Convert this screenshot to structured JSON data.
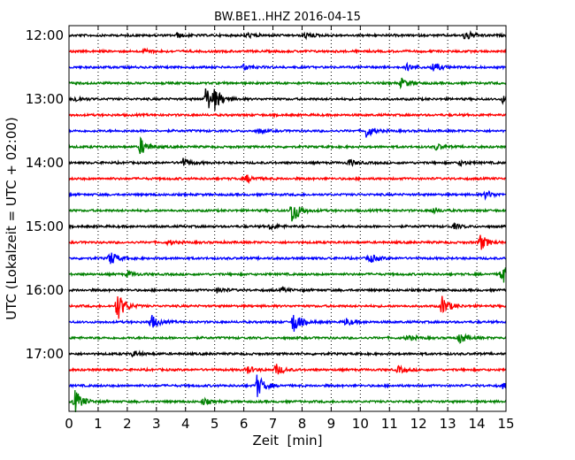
{
  "chart_data": {
    "type": "line",
    "title": "BW.BE1..HHZ 2016-04-15",
    "xlabel": "Zeit  [min]",
    "ylabel": "UTC (Lokalzeit = UTC + 02:00)",
    "xlim": [
      0,
      15
    ],
    "xticks": [
      "0",
      "1",
      "2",
      "3",
      "4",
      "5",
      "6",
      "7",
      "8",
      "9",
      "10",
      "11",
      "12",
      "13",
      "14",
      "15"
    ],
    "yticks": [
      "12:00",
      "13:00",
      "14:00",
      "15:00",
      "16:00",
      "17:00"
    ],
    "grid": "vertical dotted",
    "color_cycle": [
      "#000000",
      "#ff0000",
      "#0000ff",
      "#008000"
    ],
    "traces": [
      {
        "label": "12:00",
        "color": "#000000",
        "events": [
          {
            "t": 13.6,
            "amp": 0.6
          },
          {
            "t": 8.1,
            "amp": 0.3
          },
          {
            "t": 6.1,
            "amp": 0.25
          },
          {
            "t": 3.7,
            "amp": 0.2
          }
        ]
      },
      {
        "label": "12:15",
        "color": "#ff0000",
        "events": [
          {
            "t": 2.6,
            "amp": 0.25
          }
        ]
      },
      {
        "label": "12:30",
        "color": "#0000ff",
        "events": [
          {
            "t": 12.5,
            "amp": 0.5
          },
          {
            "t": 11.6,
            "amp": 0.3
          },
          {
            "t": 6.0,
            "amp": 0.3
          }
        ]
      },
      {
        "label": "12:45",
        "color": "#008000",
        "events": [
          {
            "t": 11.4,
            "amp": 0.5
          }
        ]
      },
      {
        "label": "13:00",
        "color": "#000000",
        "events": [
          {
            "t": 4.7,
            "amp": 1.4
          },
          {
            "t": 5.0,
            "amp": 0.8
          },
          {
            "t": 14.9,
            "amp": 0.4
          },
          {
            "t": 0.2,
            "amp": 0.3
          }
        ]
      },
      {
        "label": "13:15",
        "color": "#ff0000",
        "events": []
      },
      {
        "label": "13:30",
        "color": "#0000ff",
        "events": [
          {
            "t": 10.2,
            "amp": 0.7
          },
          {
            "t": 6.5,
            "amp": 0.2
          }
        ]
      },
      {
        "label": "13:45",
        "color": "#008000",
        "events": [
          {
            "t": 2.45,
            "amp": 0.9
          },
          {
            "t": 12.6,
            "amp": 0.3
          }
        ]
      },
      {
        "label": "14:00",
        "color": "#000000",
        "events": [
          {
            "t": 3.9,
            "amp": 0.5
          },
          {
            "t": 9.6,
            "amp": 0.35
          },
          {
            "t": 13.4,
            "amp": 0.25
          }
        ]
      },
      {
        "label": "14:15",
        "color": "#ff0000",
        "events": [
          {
            "t": 6.1,
            "amp": 0.4
          }
        ]
      },
      {
        "label": "14:30",
        "color": "#0000ff",
        "events": [
          {
            "t": 14.3,
            "amp": 0.4
          }
        ]
      },
      {
        "label": "14:45",
        "color": "#008000",
        "events": [
          {
            "t": 7.65,
            "amp": 1.5
          },
          {
            "t": 12.5,
            "amp": 0.3
          }
        ]
      },
      {
        "label": "15:00",
        "color": "#000000",
        "events": [
          {
            "t": 6.9,
            "amp": 0.3
          },
          {
            "t": 13.2,
            "amp": 0.25
          }
        ]
      },
      {
        "label": "15:15",
        "color": "#ff0000",
        "events": [
          {
            "t": 14.1,
            "amp": 0.9
          },
          {
            "t": 3.4,
            "amp": 0.2
          }
        ]
      },
      {
        "label": "15:30",
        "color": "#0000ff",
        "events": [
          {
            "t": 1.4,
            "amp": 0.8
          },
          {
            "t": 10.3,
            "amp": 0.5
          }
        ]
      },
      {
        "label": "15:45",
        "color": "#008000",
        "events": [
          {
            "t": 14.85,
            "amp": 1.2
          },
          {
            "t": 2.0,
            "amp": 0.3
          }
        ]
      },
      {
        "label": "16:00",
        "color": "#000000",
        "events": [
          {
            "t": 5.1,
            "amp": 0.3
          },
          {
            "t": 7.3,
            "amp": 0.2
          }
        ]
      },
      {
        "label": "16:15",
        "color": "#ff0000",
        "events": [
          {
            "t": 1.65,
            "amp": 1.6
          },
          {
            "t": 12.8,
            "amp": 1.0
          }
        ]
      },
      {
        "label": "16:30",
        "color": "#0000ff",
        "events": [
          {
            "t": 2.8,
            "amp": 0.8
          },
          {
            "t": 7.7,
            "amp": 1.2
          },
          {
            "t": 9.5,
            "amp": 0.4
          }
        ]
      },
      {
        "label": "16:45",
        "color": "#008000",
        "events": [
          {
            "t": 13.4,
            "amp": 0.6
          },
          {
            "t": 11.6,
            "amp": 0.3
          }
        ]
      },
      {
        "label": "17:00",
        "color": "#000000",
        "events": [
          {
            "t": 2.2,
            "amp": 0.3
          }
        ]
      },
      {
        "label": "17:15",
        "color": "#ff0000",
        "events": [
          {
            "t": 7.1,
            "amp": 0.6
          },
          {
            "t": 6.1,
            "amp": 0.4
          },
          {
            "t": 11.3,
            "amp": 0.35
          }
        ]
      },
      {
        "label": "17:30",
        "color": "#0000ff",
        "events": [
          {
            "t": 6.45,
            "amp": 1.2
          },
          {
            "t": 14.9,
            "amp": 0.3
          }
        ]
      },
      {
        "label": "17:45",
        "color": "#008000",
        "events": [
          {
            "t": 0.2,
            "amp": 1.2
          },
          {
            "t": 4.6,
            "amp": 0.3
          }
        ]
      }
    ]
  }
}
